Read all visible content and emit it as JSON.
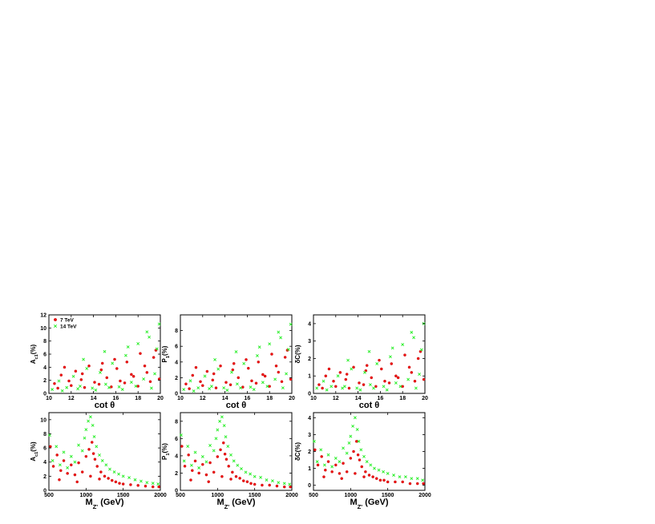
{
  "colors": {
    "series_7tev": "#ee1111",
    "series_14tev": "#22ee22",
    "axis": "#000000"
  },
  "chart_data": [
    {
      "type": "scatter",
      "panel": "top-left",
      "xlabel": "cot θ",
      "ylabel": "A_{c1}(%)",
      "xlim": [
        10,
        20
      ],
      "ylim": [
        0,
        12
      ],
      "xticks": [
        10,
        12,
        14,
        16,
        18,
        20
      ],
      "yticks": [
        0,
        2,
        4,
        6,
        8,
        10,
        12
      ],
      "legend": {
        "placement": "top-left",
        "entries": [
          "7  TeV",
          "14 TeV"
        ]
      },
      "series": [
        {
          "name": "7  TeV",
          "marker": "circle",
          "color": "#ee1111",
          "x": [
            10.5,
            11.1,
            11.8,
            12.4,
            12.9,
            13.6,
            14.1,
            14.7,
            15.2,
            15.9,
            16.4,
            17.0,
            17.6,
            18.2,
            18.8,
            19.4,
            19.9,
            10.8,
            12.0,
            13.2,
            14.5,
            15.6,
            16.8,
            18.0,
            19.1,
            11.4,
            13.0,
            14.8,
            16.1,
            17.4,
            18.6,
            19.6
          ],
          "y": [
            1.5,
            2.8,
            1.9,
            3.4,
            2.1,
            4.2,
            1.7,
            3.6,
            2.4,
            5.2,
            1.9,
            4.8,
            2.6,
            6.1,
            3.2,
            5.5,
            2.2,
            0.8,
            1.2,
            0.9,
            1.4,
            1.0,
            1.6,
            1.1,
            1.8,
            4.0,
            3.0,
            4.6,
            3.8,
            2.9,
            4.2,
            6.6
          ]
        },
        {
          "name": "14 TeV",
          "marker": "cross",
          "color": "#22ee22",
          "x": [
            10.3,
            10.9,
            11.6,
            12.2,
            12.8,
            13.4,
            13.9,
            14.6,
            15.1,
            15.7,
            16.3,
            16.9,
            17.4,
            18.0,
            18.5,
            19.0,
            19.5,
            19.9,
            11.2,
            12.6,
            14.2,
            15.4,
            16.6,
            17.8,
            19.2,
            13.1,
            15.0,
            17.1,
            18.8,
            19.7
          ],
          "y": [
            0.6,
            1.9,
            0.9,
            2.6,
            1.1,
            3.8,
            0.8,
            3.2,
            1.4,
            4.6,
            1.0,
            5.8,
            1.7,
            7.6,
            2.2,
            8.6,
            3.0,
            10.6,
            0.4,
            0.7,
            0.5,
            0.9,
            0.6,
            1.1,
            0.8,
            5.2,
            6.4,
            7.1,
            9.4,
            6.8
          ]
        }
      ]
    },
    {
      "type": "scatter",
      "panel": "top-middle",
      "xlabel": "cot θ",
      "ylabel": "P_{1}(%)",
      "xlim": [
        10,
        20
      ],
      "ylim": [
        0,
        10
      ],
      "xticks": [
        10,
        12,
        14,
        16,
        18,
        20
      ],
      "yticks": [
        0,
        2,
        4,
        6,
        8
      ],
      "series": [
        {
          "name": "7  TeV",
          "marker": "circle",
          "color": "#ee1111",
          "x": [
            10.5,
            11.1,
            11.8,
            12.4,
            12.9,
            13.6,
            14.1,
            14.7,
            15.2,
            15.9,
            16.4,
            17.0,
            17.6,
            18.2,
            18.8,
            19.4,
            19.9,
            10.8,
            12.0,
            13.2,
            14.5,
            15.6,
            16.8,
            18.0,
            19.1,
            11.4,
            13.0,
            14.8,
            16.1,
            17.4,
            18.6,
            19.6
          ],
          "y": [
            1.2,
            2.3,
            1.5,
            2.8,
            1.7,
            3.5,
            1.4,
            3.0,
            2.0,
            4.3,
            1.6,
            4.0,
            2.2,
            5.0,
            2.7,
            4.6,
            1.8,
            0.6,
            1.0,
            0.7,
            1.1,
            0.8,
            1.3,
            0.9,
            1.5,
            3.3,
            2.5,
            3.8,
            3.2,
            2.4,
            3.5,
            5.5
          ]
        },
        {
          "name": "14 TeV",
          "marker": "cross",
          "color": "#22ee22",
          "x": [
            10.3,
            10.9,
            11.6,
            12.2,
            12.8,
            13.4,
            13.9,
            14.6,
            15.1,
            15.7,
            16.3,
            16.9,
            17.4,
            18.0,
            18.5,
            19.0,
            19.5,
            19.9,
            11.2,
            12.6,
            14.2,
            15.4,
            16.6,
            17.8,
            19.2,
            13.1,
            15.0,
            17.1,
            18.8,
            19.7
          ],
          "y": [
            0.5,
            1.6,
            0.7,
            2.2,
            0.9,
            3.1,
            0.7,
            2.7,
            1.2,
            3.8,
            0.8,
            4.8,
            1.4,
            6.3,
            1.8,
            7.1,
            2.5,
            8.8,
            0.3,
            0.6,
            0.4,
            0.7,
            0.5,
            0.9,
            0.7,
            4.3,
            5.3,
            5.9,
            7.8,
            5.6
          ]
        }
      ]
    },
    {
      "type": "scatter",
      "panel": "top-right",
      "xlabel": "cot θ",
      "ylabel": "δC(%)",
      "xlim": [
        10,
        20
      ],
      "ylim": [
        0,
        4.5
      ],
      "xticks": [
        10,
        12,
        14,
        16,
        18,
        20
      ],
      "yticks": [
        0,
        1,
        2,
        3,
        4
      ],
      "series": [
        {
          "name": "7  TeV",
          "marker": "circle",
          "color": "#ee1111",
          "x": [
            10.5,
            11.1,
            11.8,
            12.4,
            12.9,
            13.6,
            14.1,
            14.7,
            15.2,
            15.9,
            16.4,
            17.0,
            17.6,
            18.2,
            18.8,
            19.4,
            19.9,
            10.8,
            12.0,
            13.2,
            14.5,
            15.6,
            16.8,
            18.0,
            19.1,
            11.4,
            13.0,
            14.8,
            16.1,
            17.4,
            18.6,
            19.6
          ],
          "y": [
            0.5,
            1.0,
            0.7,
            1.2,
            0.8,
            1.5,
            0.6,
            1.3,
            0.9,
            1.9,
            0.7,
            1.7,
            0.9,
            2.2,
            1.2,
            2.0,
            0.8,
            0.3,
            0.4,
            0.3,
            0.5,
            0.4,
            0.6,
            0.4,
            0.7,
            1.4,
            1.1,
            1.6,
            1.4,
            1.0,
            1.5,
            2.4
          ]
        },
        {
          "name": "14 TeV",
          "marker": "cross",
          "color": "#22ee22",
          "x": [
            10.3,
            10.9,
            11.6,
            12.2,
            12.8,
            13.4,
            13.9,
            14.6,
            15.1,
            15.7,
            16.3,
            16.9,
            17.4,
            18.0,
            18.5,
            19.0,
            19.5,
            19.9,
            11.2,
            12.6,
            14.2,
            15.4,
            16.6,
            17.8,
            19.2,
            13.1,
            15.0,
            17.1,
            18.8,
            19.7
          ],
          "y": [
            0.3,
            0.7,
            0.4,
            1.0,
            0.4,
            1.4,
            0.3,
            1.2,
            0.5,
            1.7,
            0.4,
            2.1,
            0.6,
            2.8,
            0.8,
            3.2,
            1.1,
            4.0,
            0.2,
            0.3,
            0.2,
            0.3,
            0.2,
            0.4,
            0.3,
            1.9,
            2.4,
            2.6,
            3.5,
            2.5
          ]
        }
      ]
    },
    {
      "type": "scatter",
      "panel": "bottom-left",
      "xlabel": "M_{Z'} (GeV)",
      "ylabel": "A_{c1}(%)",
      "xlim": [
        500,
        2000
      ],
      "ylim": [
        0,
        11
      ],
      "xticks": [
        500,
        1000,
        1500,
        2000
      ],
      "yticks": [
        0,
        2,
        4,
        6,
        8,
        10
      ],
      "series": [
        {
          "name": "7  TeV",
          "marker": "circle",
          "color": "#ee1111",
          "x": [
            520,
            560,
            610,
            660,
            700,
            750,
            800,
            850,
            900,
            950,
            1000,
            1040,
            1080,
            1100,
            1120,
            1150,
            1200,
            1250,
            1300,
            1350,
            1400,
            1450,
            1500,
            1600,
            1700,
            1800,
            1900,
            1980,
            640,
            880,
            1060,
            1180
          ],
          "y": [
            6.2,
            3.4,
            5.0,
            2.8,
            4.2,
            2.4,
            3.6,
            2.2,
            3.9,
            2.6,
            4.8,
            5.8,
            6.8,
            5.2,
            4.4,
            3.4,
            2.6,
            2.0,
            1.7,
            1.4,
            1.2,
            1.0,
            0.9,
            0.8,
            0.7,
            0.6,
            0.5,
            0.5,
            1.5,
            1.2,
            2.0,
            1.6
          ]
        },
        {
          "name": "14 TeV",
          "marker": "cross",
          "color": "#22ee22",
          "x": [
            510,
            550,
            600,
            650,
            700,
            750,
            800,
            850,
            900,
            950,
            980,
            1000,
            1030,
            1060,
            1090,
            1110,
            1140,
            1180,
            1220,
            1270,
            1320,
            1380,
            1440,
            1500,
            1580,
            1660,
            1740,
            1820,
            1900,
            1970
          ],
          "y": [
            7.8,
            4.2,
            6.2,
            3.6,
            5.4,
            3.2,
            4.8,
            4.0,
            6.4,
            5.6,
            7.4,
            8.6,
            9.8,
            10.4,
            9.2,
            7.6,
            6.2,
            5.0,
            4.2,
            3.6,
            3.0,
            2.6,
            2.3,
            2.0,
            1.8,
            1.5,
            1.3,
            1.1,
            1.0,
            0.9
          ]
        }
      ]
    },
    {
      "type": "scatter",
      "panel": "bottom-middle",
      "xlabel": "M_{Z'} (GeV)",
      "ylabel": "P_{1}(%)",
      "xlim": [
        500,
        2000
      ],
      "ylim": [
        0,
        9
      ],
      "xticks": [
        500,
        1000,
        1500,
        2000
      ],
      "yticks": [
        0,
        2,
        4,
        6,
        8
      ],
      "series": [
        {
          "name": "7  TeV",
          "marker": "circle",
          "color": "#ee1111",
          "x": [
            520,
            560,
            610,
            660,
            700,
            750,
            800,
            850,
            900,
            950,
            1000,
            1040,
            1080,
            1100,
            1120,
            1150,
            1200,
            1250,
            1300,
            1350,
            1400,
            1450,
            1500,
            1600,
            1700,
            1800,
            1900,
            1980,
            640,
            880,
            1060,
            1180
          ],
          "y": [
            5.1,
            2.8,
            4.1,
            2.3,
            3.4,
            2.0,
            3.0,
            1.8,
            3.2,
            2.1,
            3.9,
            4.7,
            5.5,
            4.2,
            3.6,
            2.8,
            2.1,
            1.6,
            1.4,
            1.1,
            1.0,
            0.8,
            0.7,
            0.6,
            0.6,
            0.5,
            0.4,
            0.4,
            1.2,
            1.0,
            1.6,
            1.3
          ]
        },
        {
          "name": "14 TeV",
          "marker": "cross",
          "color": "#22ee22",
          "x": [
            510,
            550,
            600,
            650,
            700,
            750,
            800,
            850,
            900,
            950,
            980,
            1000,
            1030,
            1060,
            1090,
            1110,
            1140,
            1180,
            1220,
            1270,
            1320,
            1380,
            1440,
            1500,
            1580,
            1660,
            1740,
            1820,
            1900,
            1970
          ],
          "y": [
            6.4,
            3.4,
            5.1,
            2.9,
            4.4,
            2.6,
            3.9,
            3.3,
            5.2,
            4.6,
            6.0,
            7.0,
            8.0,
            8.5,
            7.5,
            6.2,
            5.1,
            4.1,
            3.4,
            2.9,
            2.5,
            2.1,
            1.9,
            1.6,
            1.5,
            1.2,
            1.1,
            0.9,
            0.8,
            0.7
          ]
        }
      ]
    },
    {
      "type": "scatter",
      "panel": "bottom-right",
      "xlabel": "M_{Z'} (GeV)",
      "ylabel": "δC(%)",
      "xlim": [
        500,
        2000
      ],
      "ylim": [
        -0.3,
        4.3
      ],
      "xticks": [
        500,
        1000,
        1500,
        2000
      ],
      "yticks": [
        0,
        1,
        2,
        3,
        4
      ],
      "series": [
        {
          "name": "7  TeV",
          "marker": "circle",
          "color": "#ee1111",
          "x": [
            520,
            560,
            610,
            660,
            700,
            750,
            800,
            850,
            900,
            950,
            1000,
            1040,
            1080,
            1100,
            1120,
            1150,
            1200,
            1250,
            1300,
            1350,
            1400,
            1450,
            1500,
            1600,
            1700,
            1800,
            1900,
            1980,
            640,
            880,
            1060,
            1180
          ],
          "y": [
            2.1,
            1.2,
            1.7,
            0.9,
            1.4,
            0.8,
            1.2,
            0.7,
            1.3,
            0.8,
            1.6,
            2.0,
            2.6,
            1.8,
            1.5,
            1.1,
            0.8,
            0.6,
            0.5,
            0.4,
            0.3,
            0.3,
            0.2,
            0.2,
            0.2,
            0.1,
            0.1,
            0.1,
            0.5,
            0.4,
            0.7,
            0.5
          ]
        },
        {
          "name": "14 TeV",
          "marker": "cross",
          "color": "#22ee22",
          "x": [
            510,
            550,
            600,
            650,
            700,
            750,
            800,
            850,
            900,
            950,
            980,
            1000,
            1030,
            1060,
            1090,
            1110,
            1140,
            1180,
            1220,
            1270,
            1320,
            1380,
            1440,
            1500,
            1580,
            1660,
            1740,
            1820,
            1900,
            1970
          ],
          "y": [
            2.6,
            1.4,
            2.1,
            1.2,
            1.8,
            1.1,
            1.6,
            1.4,
            2.2,
            1.9,
            2.5,
            2.9,
            3.5,
            4.0,
            3.3,
            2.6,
            2.1,
            1.7,
            1.4,
            1.2,
            1.0,
            0.9,
            0.8,
            0.7,
            0.6,
            0.5,
            0.5,
            0.4,
            0.4,
            0.3
          ]
        }
      ]
    }
  ]
}
